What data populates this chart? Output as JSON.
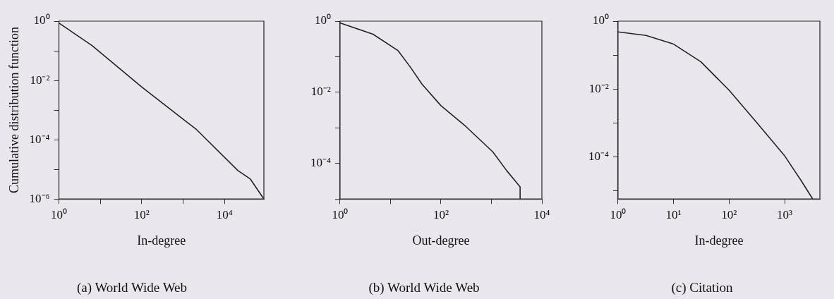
{
  "chart_data": [
    {
      "type": "line",
      "title": "(a) World Wide Web",
      "xlabel": "In-degree",
      "ylabel": "Cumulative distribution function",
      "log": "xy",
      "grid": false,
      "legend": false,
      "marker": "none",
      "line_style": "solid",
      "x": [
        1,
        6.3,
        100,
        2100,
        21000,
        42000,
        89000
      ],
      "series": [
        {
          "color": "#222222",
          "values": [
            0.87,
            0.15,
            0.006,
            0.00022,
            9.1e-06,
            4.7e-06,
            1e-06
          ]
        }
      ],
      "xlim": [
        1,
        89000
      ],
      "ylim": [
        1e-06,
        1
      ],
      "xticks": [
        {
          "value": 1,
          "label": "10⁰"
        },
        {
          "value": 10,
          "label": null
        },
        {
          "value": 100,
          "label": "10²"
        },
        {
          "value": 1000,
          "label": null
        },
        {
          "value": 10000,
          "label": "10⁴"
        }
      ],
      "yticks": [
        {
          "value": 1,
          "label": "10⁰"
        },
        {
          "value": 0.1,
          "label": null
        },
        {
          "value": 0.01,
          "label": "10⁻²"
        },
        {
          "value": 0.001,
          "label": null
        },
        {
          "value": 0.0001,
          "label": "10⁻⁴"
        },
        {
          "value": 1e-05,
          "label": null
        },
        {
          "value": 1e-06,
          "label": "10⁻⁶"
        }
      ]
    },
    {
      "type": "line",
      "title": "(b) World Wide Web",
      "xlabel": "Out-degree",
      "log": "xy",
      "grid": false,
      "legend": false,
      "marker": "none",
      "line_style": "solid",
      "x": [
        1,
        4.5,
        14,
        25,
        42,
        100,
        310,
        1070,
        2000,
        3700,
        3700
      ],
      "series": [
        {
          "color": "#222222",
          "values": [
            0.89,
            0.43,
            0.15,
            0.05,
            0.017,
            0.0042,
            0.0011,
            0.00021,
            6.3e-05,
            2.2e-05,
            1e-05
          ]
        }
      ],
      "xlim": [
        1,
        10000
      ],
      "ylim": [
        1e-05,
        1
      ],
      "xticks": [
        {
          "value": 1,
          "label": "10⁰"
        },
        {
          "value": 10,
          "label": null
        },
        {
          "value": 100,
          "label": "10²"
        },
        {
          "value": 1000,
          "label": null
        },
        {
          "value": 10000,
          "label": "10⁴"
        }
      ],
      "yticks": [
        {
          "value": 1,
          "label": "10⁰"
        },
        {
          "value": 0.1,
          "label": null
        },
        {
          "value": 0.01,
          "label": "10⁻²"
        },
        {
          "value": 0.001,
          "label": null
        },
        {
          "value": 0.0001,
          "label": "10⁻⁴"
        },
        {
          "value": 1e-05,
          "label": null
        }
      ]
    },
    {
      "type": "line",
      "title": "(c) Citation",
      "xlabel": "In-degree",
      "log": "xy",
      "grid": false,
      "legend": false,
      "marker": "none",
      "line_style": "solid",
      "x": [
        1,
        3.2,
        10,
        31,
        100,
        300,
        1000,
        2000,
        3200
      ],
      "series": [
        {
          "color": "#222222",
          "values": [
            0.48,
            0.38,
            0.21,
            0.063,
            0.0091,
            0.0011,
            0.000105,
            1.9e-05,
            5.6e-06
          ]
        }
      ],
      "xlim": [
        1,
        4300
      ],
      "ylim": [
        5.6e-06,
        1
      ],
      "xticks": [
        {
          "value": 1,
          "label": "10⁰"
        },
        {
          "value": 10,
          "label": "10¹"
        },
        {
          "value": 100,
          "label": "10²"
        },
        {
          "value": 1000,
          "label": "10³"
        }
      ],
      "yticks": [
        {
          "value": 1,
          "label": "10⁰"
        },
        {
          "value": 0.1,
          "label": null
        },
        {
          "value": 0.01,
          "label": "10⁻²"
        },
        {
          "value": 0.001,
          "label": null
        },
        {
          "value": 0.0001,
          "label": "10⁻⁴"
        },
        {
          "value": 1e-05,
          "label": null
        }
      ]
    }
  ]
}
